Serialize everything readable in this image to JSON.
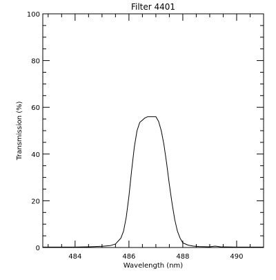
{
  "chart_data": {
    "type": "line",
    "title": "Filter 4401",
    "xlabel": "Wavelength (nm)",
    "ylabel": "Transmission (%)",
    "xlim": [
      482.8,
      491.0
    ],
    "ylim": [
      0,
      100
    ],
    "xticks": [
      484,
      486,
      488,
      490
    ],
    "yticks": [
      0,
      20,
      40,
      60,
      80,
      100
    ],
    "x_minor_step": 0.5,
    "y_minor_step": 5,
    "grid": false,
    "legend": "none",
    "colors": {
      "background": "#ffffff",
      "line": "#000000",
      "axes": "#000000"
    },
    "series": [
      {
        "x": [
          482.8,
          483.5,
          484.0,
          484.5,
          485.0,
          485.3,
          485.5,
          485.7,
          485.8,
          485.9,
          486.0,
          486.1,
          486.2,
          486.3,
          486.4,
          486.5,
          486.6,
          486.7,
          486.8,
          486.9,
          487.0,
          487.1,
          487.2,
          487.3,
          487.4,
          487.5,
          487.6,
          487.7,
          487.8,
          487.9,
          488.0,
          488.2,
          488.4,
          488.6,
          489.0,
          489.2,
          489.4,
          490.0,
          491.0
        ],
        "y": [
          0.2,
          0.2,
          0.2,
          0.3,
          0.5,
          0.8,
          1.5,
          4,
          7,
          13,
          22,
          33,
          43,
          50,
          53.5,
          54.5,
          55.5,
          56,
          56,
          56,
          56,
          54,
          50,
          44,
          36,
          27,
          19,
          12,
          7,
          4,
          2,
          1,
          0.6,
          0.4,
          0.3,
          0.6,
          0.3,
          0.2,
          0.2
        ]
      }
    ]
  }
}
